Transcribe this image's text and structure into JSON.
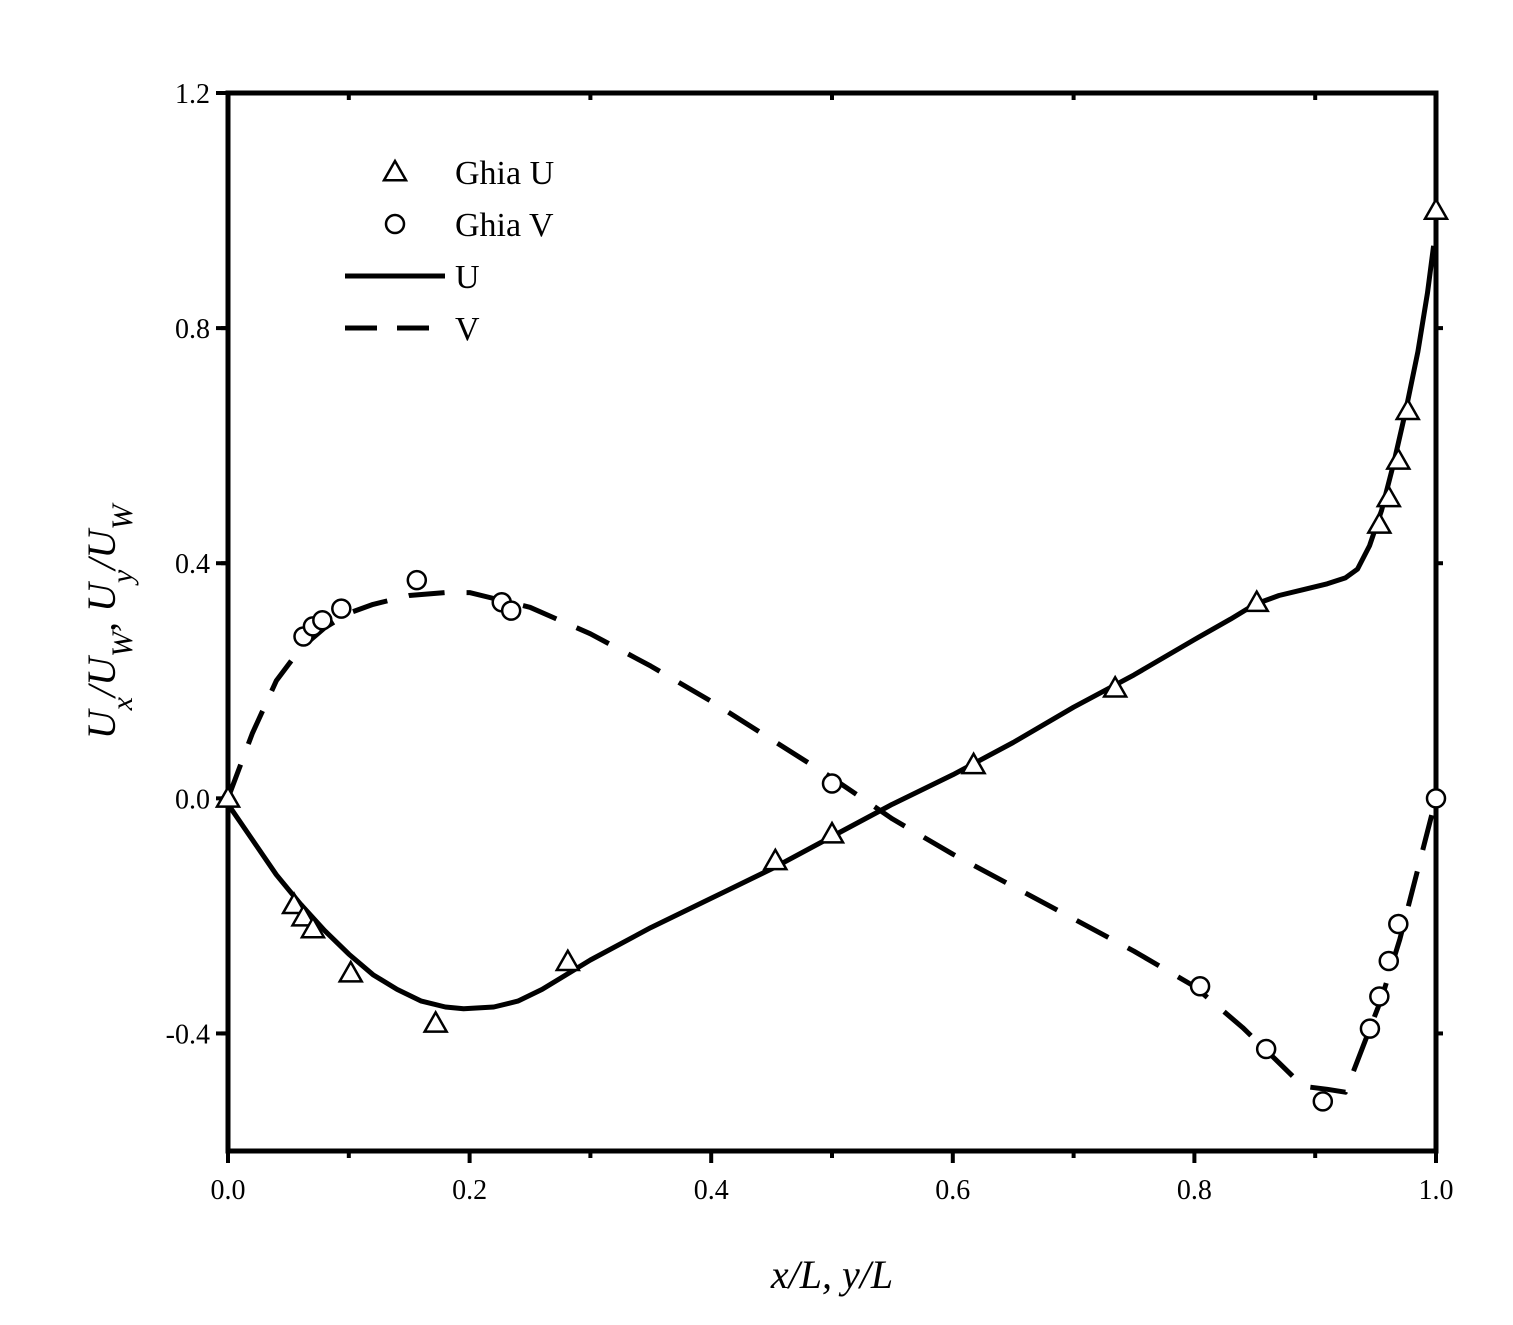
{
  "chart_data": {
    "type": "line",
    "title": "",
    "xlabel": "x/L, y/L",
    "ylabel": "U_x/U_W,  U_y/U_W",
    "xlim": [
      0.0,
      1.0
    ],
    "ylim": [
      -0.6,
      1.2
    ],
    "x_ticks": [
      "0.0",
      "0.2",
      "0.4",
      "0.6",
      "0.8",
      "1.0"
    ],
    "y_ticks": [
      "-0.4",
      "0.0",
      "0.4",
      "0.8",
      "1.2"
    ],
    "grid": false,
    "legend_position": "top-left",
    "legend": [
      "Ghia U",
      "Ghia V",
      "U",
      "V"
    ],
    "series": [
      {
        "name": "Ghia U",
        "marker": "triangle-open",
        "points": [
          [
            0.0,
            0.0
          ],
          [
            0.0547,
            -0.1811
          ],
          [
            0.0625,
            -0.202
          ],
          [
            0.0703,
            -0.2222
          ],
          [
            0.1016,
            -0.2973
          ],
          [
            0.1719,
            -0.3829
          ],
          [
            0.2813,
            -0.2781
          ],
          [
            0.4531,
            -0.1065
          ],
          [
            0.5,
            -0.0608
          ],
          [
            0.6172,
            0.057
          ],
          [
            0.7344,
            0.1872
          ],
          [
            0.8516,
            0.333
          ],
          [
            0.9531,
            0.466
          ],
          [
            0.9609,
            0.5112
          ],
          [
            0.9688,
            0.5749
          ],
          [
            0.9766,
            0.6593
          ],
          [
            1.0,
            1.0
          ]
        ]
      },
      {
        "name": "Ghia V",
        "marker": "circle-open",
        "points": [
          [
            0.0625,
            0.2753
          ],
          [
            0.0703,
            0.2926
          ],
          [
            0.0781,
            0.303
          ],
          [
            0.0938,
            0.3227
          ],
          [
            0.1563,
            0.3712
          ],
          [
            0.2266,
            0.3335
          ],
          [
            0.2344,
            0.3193
          ],
          [
            0.5,
            0.0253
          ],
          [
            0.8047,
            -0.3198
          ],
          [
            0.8594,
            -0.4265
          ],
          [
            0.9063,
            -0.5155
          ],
          [
            0.9453,
            -0.3919
          ],
          [
            0.9531,
            -0.3371
          ],
          [
            0.9609,
            -0.2768
          ],
          [
            0.9688,
            -0.2139
          ],
          [
            1.0,
            0.0
          ]
        ]
      },
      {
        "name": "U",
        "style": "solid",
        "points": [
          [
            0.0,
            -0.01
          ],
          [
            0.02,
            -0.07
          ],
          [
            0.04,
            -0.13
          ],
          [
            0.06,
            -0.18
          ],
          [
            0.08,
            -0.225
          ],
          [
            0.1,
            -0.265
          ],
          [
            0.12,
            -0.3
          ],
          [
            0.14,
            -0.325
          ],
          [
            0.16,
            -0.345
          ],
          [
            0.18,
            -0.355
          ],
          [
            0.195,
            -0.358
          ],
          [
            0.22,
            -0.355
          ],
          [
            0.24,
            -0.345
          ],
          [
            0.26,
            -0.325
          ],
          [
            0.28,
            -0.3
          ],
          [
            0.3,
            -0.275
          ],
          [
            0.35,
            -0.22
          ],
          [
            0.4,
            -0.17
          ],
          [
            0.45,
            -0.12
          ],
          [
            0.5,
            -0.065
          ],
          [
            0.55,
            -0.01
          ],
          [
            0.6,
            0.04
          ],
          [
            0.65,
            0.095
          ],
          [
            0.7,
            0.155
          ],
          [
            0.75,
            0.21
          ],
          [
            0.8,
            0.27
          ],
          [
            0.83,
            0.305
          ],
          [
            0.85,
            0.33
          ],
          [
            0.87,
            0.345
          ],
          [
            0.89,
            0.355
          ],
          [
            0.91,
            0.365
          ],
          [
            0.925,
            0.375
          ],
          [
            0.935,
            0.39
          ],
          [
            0.945,
            0.43
          ],
          [
            0.955,
            0.49
          ],
          [
            0.965,
            0.57
          ],
          [
            0.975,
            0.66
          ],
          [
            0.985,
            0.76
          ],
          [
            0.993,
            0.86
          ],
          [
            0.998,
            0.94
          ]
        ]
      },
      {
        "name": "V",
        "style": "dashed",
        "points": [
          [
            0.0,
            0.0
          ],
          [
            0.02,
            0.11
          ],
          [
            0.04,
            0.2
          ],
          [
            0.06,
            0.255
          ],
          [
            0.08,
            0.29
          ],
          [
            0.1,
            0.315
          ],
          [
            0.12,
            0.33
          ],
          [
            0.15,
            0.345
          ],
          [
            0.18,
            0.35
          ],
          [
            0.2,
            0.35
          ],
          [
            0.22,
            0.34
          ],
          [
            0.25,
            0.325
          ],
          [
            0.3,
            0.28
          ],
          [
            0.35,
            0.225
          ],
          [
            0.4,
            0.165
          ],
          [
            0.45,
            0.1
          ],
          [
            0.5,
            0.035
          ],
          [
            0.55,
            -0.035
          ],
          [
            0.6,
            -0.095
          ],
          [
            0.65,
            -0.15
          ],
          [
            0.7,
            -0.205
          ],
          [
            0.75,
            -0.26
          ],
          [
            0.8,
            -0.32
          ],
          [
            0.84,
            -0.39
          ],
          [
            0.87,
            -0.45
          ],
          [
            0.89,
            -0.49
          ],
          [
            0.91,
            -0.495
          ],
          [
            0.925,
            -0.5
          ],
          [
            0.94,
            -0.42
          ],
          [
            0.955,
            -0.34
          ],
          [
            0.97,
            -0.24
          ],
          [
            0.985,
            -0.12
          ],
          [
            1.0,
            0.0
          ]
        ]
      }
    ]
  }
}
